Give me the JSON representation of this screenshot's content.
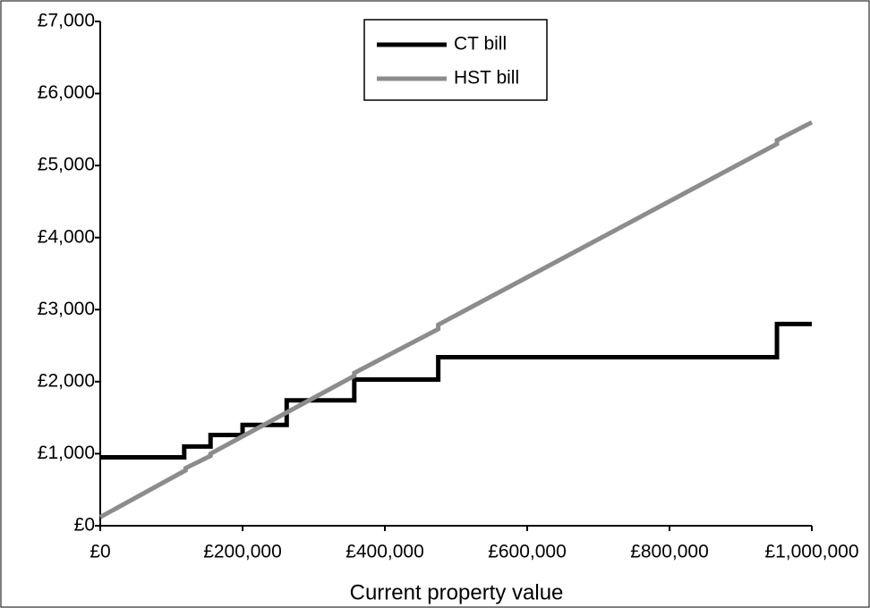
{
  "chart_data": {
    "type": "line",
    "xlabel": "Current property value",
    "x": [
      0,
      118000,
      118000,
      155000,
      155000,
      200000,
      200000,
      262000,
      262000,
      357000,
      357000,
      475000,
      475000,
      951000,
      951000,
      1000000
    ],
    "series": [
      {
        "name": "CT bill",
        "color": "#000000",
        "x": [
          0,
          118000,
          118000,
          155000,
          155000,
          200000,
          200000,
          262000,
          262000,
          357000,
          357000,
          475000,
          475000,
          951000,
          951000,
          1000000
        ],
        "values": [
          950,
          950,
          1100,
          1100,
          1260,
          1260,
          1400,
          1400,
          1740,
          1740,
          2030,
          2030,
          2340,
          2340,
          2800,
          2800
        ]
      },
      {
        "name": "HST bill",
        "color": "#8c8c8c",
        "x": [
          0,
          120000,
          120000,
          155000,
          155000,
          357000,
          357000,
          475000,
          475000,
          951000,
          951000,
          1000000
        ],
        "values": [
          120,
          770,
          800,
          970,
          1000,
          2080,
          2120,
          2730,
          2790,
          5300,
          5350,
          5600
        ]
      }
    ],
    "xlim": [
      0,
      1000000
    ],
    "ylim": [
      0,
      7000
    ],
    "xticks": [
      {
        "value": 0,
        "label": "£0"
      },
      {
        "value": 200000,
        "label": "£200,000"
      },
      {
        "value": 400000,
        "label": "£400,000"
      },
      {
        "value": 600000,
        "label": "£600,000"
      },
      {
        "value": 800000,
        "label": "£800,000"
      },
      {
        "value": 1000000,
        "label": "£1,000,000"
      }
    ],
    "yticks": [
      {
        "value": 0,
        "label": "£0"
      },
      {
        "value": 1000,
        "label": "£1,000"
      },
      {
        "value": 2000,
        "label": "£2,000"
      },
      {
        "value": 3000,
        "label": "£3,000"
      },
      {
        "value": 4000,
        "label": "£4,000"
      },
      {
        "value": 5000,
        "label": "£5,000"
      },
      {
        "value": 6000,
        "label": "£6,000"
      },
      {
        "value": 7000,
        "label": "£7,000"
      }
    ],
    "legend": "top-center"
  }
}
